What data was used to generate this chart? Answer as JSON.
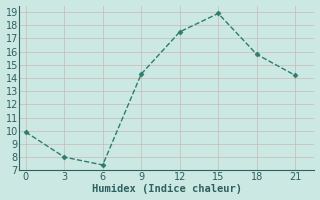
{
  "x": [
    0,
    3,
    6,
    9,
    12,
    15,
    18,
    21
  ],
  "y": [
    9.9,
    8.0,
    7.4,
    14.3,
    17.5,
    18.9,
    15.8,
    14.2
  ],
  "line_color": "#2d7d6d",
  "marker": "D",
  "marker_size": 2.5,
  "line_width": 1.0,
  "line_style": "--",
  "xlabel": "Humidex (Indice chaleur)",
  "xlim": [
    -0.5,
    22.5
  ],
  "ylim": [
    7,
    19.5
  ],
  "xticks": [
    0,
    3,
    6,
    9,
    12,
    15,
    18,
    21
  ],
  "yticks": [
    7,
    8,
    9,
    10,
    11,
    12,
    13,
    14,
    15,
    16,
    17,
    18,
    19
  ],
  "background_color": "#cce8e2",
  "grid_color": "#b8d8d2",
  "font_size": 7,
  "xlabel_fontsize": 7.5
}
